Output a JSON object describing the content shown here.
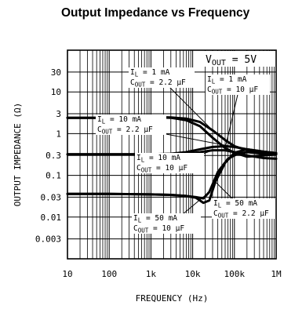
{
  "chart_data": {
    "type": "line",
    "title": "Output Impedance vs Frequency",
    "xlabel": "FREQUENCY (Hz)",
    "ylabel": "OUTPUT IMPEDANCE (Ω)",
    "x_scale": "log",
    "y_scale": "log",
    "xlim": [
      10,
      1000000
    ],
    "ylim": [
      0.001,
      100
    ],
    "grid": true,
    "x_ticks": [
      {
        "v": 10,
        "label": "10"
      },
      {
        "v": 100,
        "label": "100"
      },
      {
        "v": 1000,
        "label": "1k"
      },
      {
        "v": 10000,
        "label": "10k"
      },
      {
        "v": 100000,
        "label": "100k"
      },
      {
        "v": 1000000,
        "label": "1M"
      }
    ],
    "y_ticks": [
      {
        "v": 30,
        "label": "30"
      },
      {
        "v": 10,
        "label": "10"
      },
      {
        "v": 3,
        "label": "3"
      },
      {
        "v": 1,
        "label": "1"
      },
      {
        "v": 0.3,
        "label": "0.3"
      },
      {
        "v": 0.1,
        "label": "0.1"
      },
      {
        "v": 0.03,
        "label": "0.03"
      },
      {
        "v": 0.01,
        "label": "0.01"
      },
      {
        "v": 0.003,
        "label": "0.003"
      }
    ],
    "annotation": "V_OUT = 5V",
    "series": [
      {
        "name": "I_L = 1 mA, C_OUT = 2.2 µF",
        "x": [
          10,
          100,
          1000,
          3000,
          7000,
          15000,
          30000,
          60000,
          100000,
          200000,
          500000,
          1000000
        ],
        "y": [
          2.4,
          2.4,
          2.5,
          2.45,
          2.3,
          1.9,
          1.2,
          0.7,
          0.5,
          0.4,
          0.35,
          0.33
        ]
      },
      {
        "name": "I_L = 1 mA, C_OUT = 10 µF",
        "x": [
          10,
          100,
          1000,
          3000,
          7000,
          15000,
          30000,
          60000,
          100000,
          200000,
          500000,
          1000000
        ],
        "y": [
          2.4,
          2.4,
          2.5,
          2.4,
          2.1,
          1.5,
          0.8,
          0.45,
          0.35,
          0.28,
          0.3,
          0.32
        ]
      },
      {
        "name": "I_L = 10 mA, C_OUT = 2.2 µF",
        "x": [
          10,
          100,
          1000,
          3000,
          7000,
          15000,
          30000,
          60000,
          100000,
          200000,
          500000,
          1000000
        ],
        "y": [
          0.32,
          0.32,
          0.32,
          0.33,
          0.36,
          0.42,
          0.48,
          0.5,
          0.48,
          0.42,
          0.37,
          0.34
        ]
      },
      {
        "name": "I_L = 10 mA, C_OUT = 10 µF",
        "x": [
          10,
          100,
          1000,
          3000,
          7000,
          15000,
          30000,
          60000,
          100000,
          200000,
          500000,
          1000000
        ],
        "y": [
          0.32,
          0.32,
          0.32,
          0.32,
          0.33,
          0.36,
          0.4,
          0.4,
          0.36,
          0.3,
          0.26,
          0.25
        ]
      },
      {
        "name": "I_L = 50 mA, C_OUT = 2.2 µF",
        "x": [
          10,
          100,
          1000,
          3000,
          7000,
          12000,
          18000,
          25000,
          35000,
          60000,
          100000,
          200000,
          500000,
          1000000
        ],
        "y": [
          0.036,
          0.036,
          0.035,
          0.034,
          0.032,
          0.029,
          0.022,
          0.025,
          0.07,
          0.2,
          0.35,
          0.42,
          0.37,
          0.34
        ]
      },
      {
        "name": "I_L = 50 mA, C_OUT = 10 µF",
        "x": [
          10,
          100,
          1000,
          3000,
          7000,
          12000,
          18000,
          25000,
          40000,
          70000,
          120000,
          200000,
          500000,
          1000000
        ],
        "y": [
          0.036,
          0.036,
          0.035,
          0.034,
          0.032,
          0.03,
          0.028,
          0.04,
          0.12,
          0.25,
          0.33,
          0.36,
          0.33,
          0.32
        ]
      }
    ],
    "labels": [
      {
        "lines": [
          {
            "pre": "I",
            "sub": "L",
            "post": " = 1 mA"
          },
          {
            "pre": "C",
            "sub": "OUT",
            "post": " = 2.2 µF"
          }
        ],
        "series": 0
      },
      {
        "lines": [
          {
            "pre": "I",
            "sub": "L",
            "post": " = 1 mA"
          },
          {
            "pre": "C",
            "sub": "OUT",
            "post": " = 10 µF"
          }
        ],
        "series": 1
      },
      {
        "lines": [
          {
            "pre": "I",
            "sub": "L",
            "post": " = 10 mA"
          },
          {
            "pre": "C",
            "sub": "OUT",
            "post": " = 2.2 µF"
          }
        ],
        "series": 2
      },
      {
        "lines": [
          {
            "pre": "I",
            "sub": "L",
            "post": " = 10 mA"
          },
          {
            "pre": "C",
            "sub": "OUT",
            "post": " = 10 µF"
          }
        ],
        "series": 3
      },
      {
        "lines": [
          {
            "pre": "I",
            "sub": "L",
            "post": " = 50 mA"
          },
          {
            "pre": "C",
            "sub": "OUT",
            "post": " = 2.2 µF"
          }
        ],
        "series": 4
      },
      {
        "lines": [
          {
            "pre": "I",
            "sub": "L",
            "post": " = 50 mA"
          },
          {
            "pre": "C",
            "sub": "OUT",
            "post": " = 10 µF"
          }
        ],
        "series": 5
      }
    ]
  }
}
